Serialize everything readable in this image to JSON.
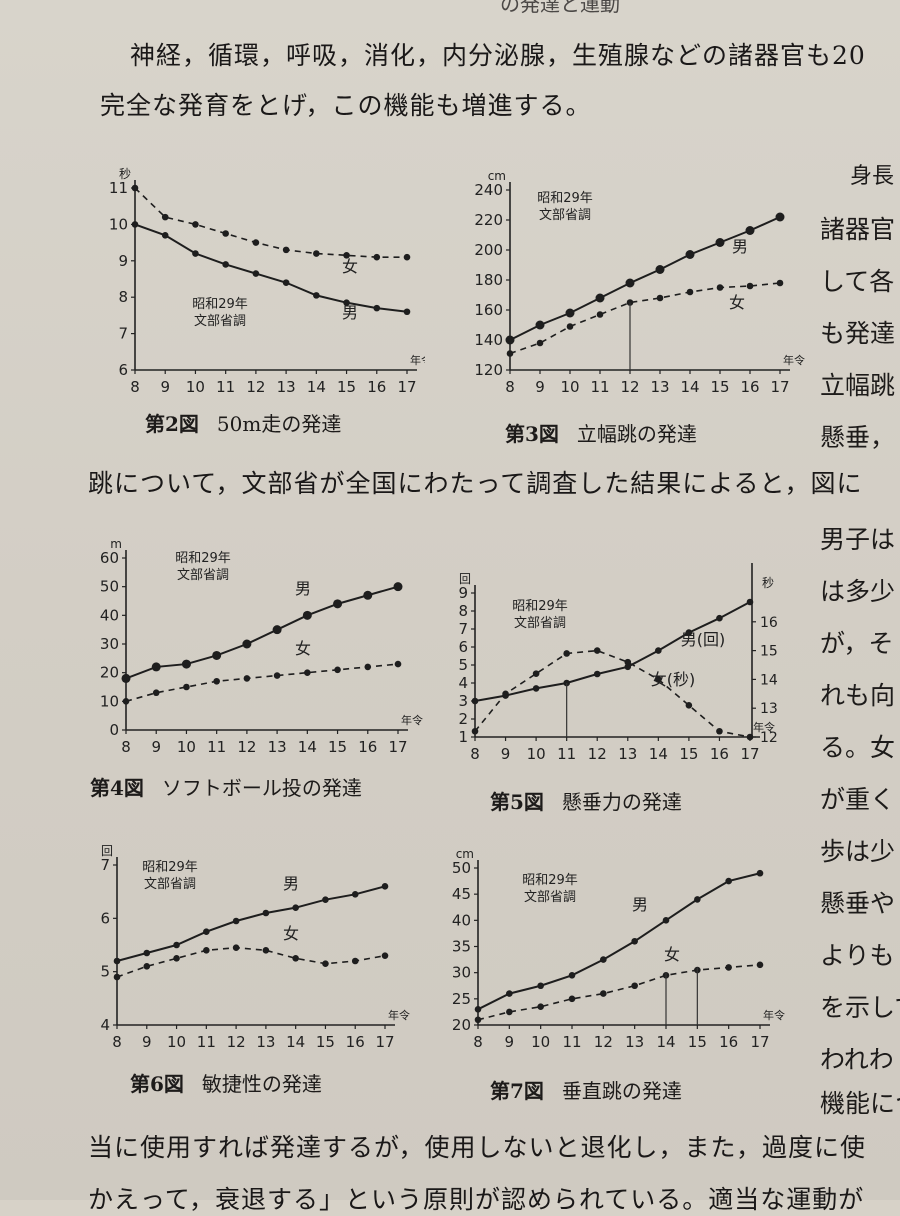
{
  "header_running": "の発達と運動",
  "body_text": {
    "line1": "神経，循環，呼吸，消化，内分泌腺，生殖腺などの諸器官も20",
    "line2": "完全な発育をとげ，この機能も増進する。",
    "line3": "跳について，文部省が全国にわたって調査した結果によると，図に",
    "line4": "当に使用すれば発達するが，使用しないと退化し，また，過度に使",
    "line5": "かえって，衰退する」という原則が認められている。適当な運動が"
  },
  "right_column": [
    "身長",
    "諸器官",
    "して各",
    "も発達",
    "立幅跳",
    "懸垂，",
    "男子は",
    "は多少",
    "が，そ",
    "れも向",
    "る。女",
    "が重く",
    "歩は少",
    "懸垂や",
    "よりも",
    "を示して",
    "われわ",
    "機能につ"
  ],
  "charts": [
    {
      "id": "fig2",
      "caption_num": "第2図",
      "caption_title": "50m走の発達",
      "y_unit": "秒",
      "x_unit": "年令",
      "note_line1": "昭和29年",
      "note_line2": "文部省調",
      "chart_data": {
        "type": "line",
        "x": [
          8,
          9,
          10,
          11,
          12,
          13,
          14,
          15,
          16,
          17
        ],
        "ylim": [
          6,
          11
        ],
        "yticks": [
          6,
          7,
          8,
          9,
          10,
          11
        ],
        "series": [
          {
            "name": "男",
            "style": "solid",
            "values": [
              10.0,
              9.7,
              9.2,
              8.9,
              8.65,
              8.4,
              8.05,
              7.85,
              7.7,
              7.6
            ]
          },
          {
            "name": "女",
            "style": "dashed",
            "values": [
              11.0,
              10.2,
              10.0,
              9.75,
              9.5,
              9.3,
              9.2,
              9.15,
              9.1,
              9.1
            ]
          }
        ]
      }
    },
    {
      "id": "fig3",
      "caption_num": "第3図",
      "caption_title": "立幅跳の発達",
      "y_unit": "cm",
      "x_unit": "年令",
      "note_line1": "昭和29年",
      "note_line2": "文部省調",
      "chart_data": {
        "type": "line",
        "x": [
          8,
          9,
          10,
          11,
          12,
          13,
          14,
          15,
          16,
          17
        ],
        "ylim": [
          120,
          240
        ],
        "yticks": [
          120,
          140,
          160,
          180,
          200,
          220,
          240
        ],
        "series": [
          {
            "name": "男",
            "style": "solid",
            "values": [
              140,
              150,
              158,
              168,
              178,
              187,
              197,
              205,
              213,
              222
            ]
          },
          {
            "name": "女",
            "style": "dashed",
            "values": [
              131,
              138,
              149,
              157,
              165,
              168,
              172,
              175,
              176,
              178
            ]
          }
        ]
      }
    },
    {
      "id": "fig4",
      "caption_num": "第4図",
      "caption_title": "ソフトボール投の発達",
      "y_unit": "m",
      "x_unit": "年令",
      "note_line1": "昭和29年",
      "note_line2": "文部省調",
      "chart_data": {
        "type": "line",
        "x": [
          8,
          9,
          10,
          11,
          12,
          13,
          14,
          15,
          16,
          17
        ],
        "ylim": [
          0,
          60
        ],
        "yticks": [
          0,
          10,
          20,
          30,
          40,
          50,
          60
        ],
        "series": [
          {
            "name": "男",
            "style": "solid",
            "values": [
              18,
              22,
              23,
              26,
              30,
              35,
              40,
              44,
              47,
              50
            ]
          },
          {
            "name": "女",
            "style": "dashed",
            "values": [
              10,
              13,
              15,
              17,
              18,
              19,
              20,
              21,
              22,
              23
            ]
          }
        ]
      }
    },
    {
      "id": "fig5",
      "caption_num": "第5図",
      "caption_title": "懸垂力の発達",
      "y_unit": "回",
      "y2_unit": "秒",
      "x_unit": "年令",
      "note_line1": "昭和29年",
      "note_line2": "文部省調",
      "chart_data": {
        "type": "line",
        "x": [
          8,
          9,
          10,
          11,
          12,
          13,
          14,
          15,
          16,
          17
        ],
        "ylim": [
          1,
          9
        ],
        "yticks": [
          1,
          2,
          3,
          4,
          5,
          6,
          7,
          8,
          9
        ],
        "y2lim": [
          12,
          17
        ],
        "y2ticks": [
          12,
          13,
          14,
          15,
          16
        ],
        "series": [
          {
            "name": "男(回)",
            "style": "solid",
            "axis": "left",
            "values": [
              3.0,
              3.3,
              3.7,
              4.0,
              4.5,
              4.9,
              5.8,
              6.8,
              7.6,
              8.5
            ]
          },
          {
            "name": "女(秒)",
            "style": "dashed",
            "axis": "right",
            "values": [
              12.2,
              13.5,
              14.2,
              14.9,
              15.0,
              14.6,
              14.0,
              13.1,
              12.2,
              12.0
            ]
          }
        ]
      }
    },
    {
      "id": "fig6",
      "caption_num": "第6図",
      "caption_title": "敏捷性の発達",
      "y_unit": "回",
      "x_unit": "年令",
      "note_line1": "昭和29年",
      "note_line2": "文部省調",
      "chart_data": {
        "type": "line",
        "x": [
          8,
          9,
          10,
          11,
          12,
          13,
          14,
          15,
          16,
          17
        ],
        "ylim": [
          4,
          7
        ],
        "yticks": [
          4,
          5,
          6,
          7
        ],
        "series": [
          {
            "name": "男",
            "style": "solid",
            "values": [
              5.2,
              5.35,
              5.5,
              5.75,
              5.95,
              6.1,
              6.2,
              6.35,
              6.45,
              6.6
            ]
          },
          {
            "name": "女",
            "style": "dashed",
            "values": [
              4.9,
              5.1,
              5.25,
              5.4,
              5.45,
              5.4,
              5.25,
              5.15,
              5.2,
              5.3
            ]
          }
        ]
      }
    },
    {
      "id": "fig7",
      "caption_num": "第7図",
      "caption_title": "垂直跳の発達",
      "y_unit": "cm",
      "x_unit": "年令",
      "note_line1": "昭和29年",
      "note_line2": "文部省調",
      "chart_data": {
        "type": "line",
        "x": [
          8,
          9,
          10,
          11,
          12,
          13,
          14,
          15,
          16,
          17
        ],
        "ylim": [
          20,
          50
        ],
        "yticks": [
          20,
          25,
          30,
          35,
          40,
          45,
          50
        ],
        "series": [
          {
            "name": "男",
            "style": "solid",
            "values": [
              23,
              26,
              27.5,
              29.5,
              32.5,
              36,
              40,
              44,
              47.5,
              49
            ]
          },
          {
            "name": "女",
            "style": "dashed",
            "values": [
              21,
              22.5,
              23.5,
              25,
              26,
              27.5,
              29.5,
              30.5,
              31,
              31.5
            ]
          }
        ]
      }
    }
  ]
}
